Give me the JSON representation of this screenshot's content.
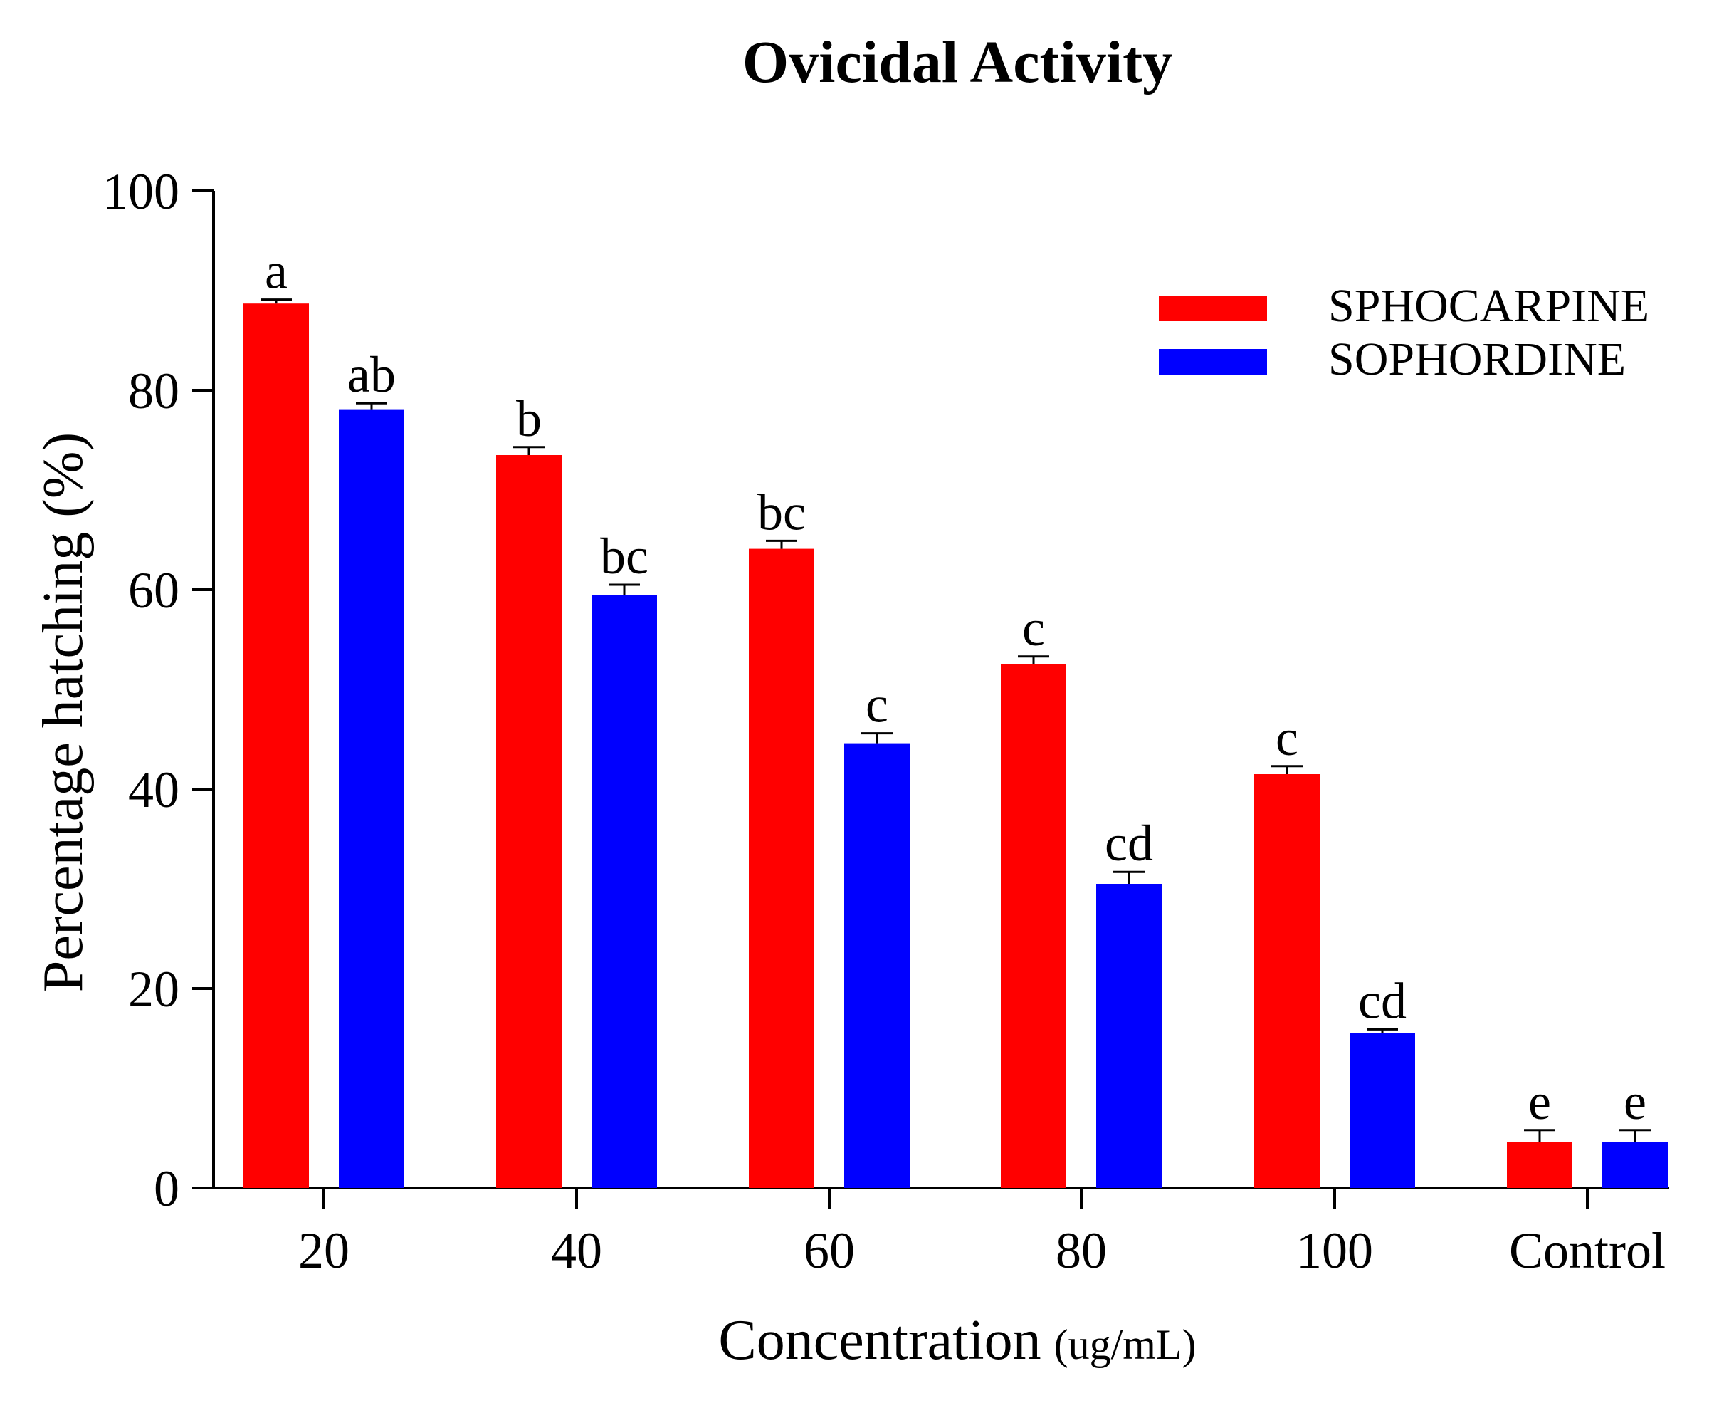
{
  "chart_data": {
    "type": "bar",
    "title": "Ovicidal Activity",
    "xlabel": "Concentration",
    "xlabel_unit": "(ug/mL)",
    "ylabel": "Percentage hatching (%)",
    "ylim": [
      0,
      100
    ],
    "yticks": [
      "0",
      "20",
      "40",
      "60",
      "80",
      "100"
    ],
    "categories": [
      "20",
      "40",
      "60",
      "80",
      "100",
      "Control"
    ],
    "series": [
      {
        "name": "SPHOCARPINE",
        "color": "#ff0000",
        "values": [
          88.7,
          73.5,
          64.1,
          52.5,
          41.5,
          4.6
        ],
        "errors": [
          0.4,
          0.8,
          0.8,
          0.8,
          0.8,
          1.2
        ],
        "labels": [
          "a",
          "b",
          "bc",
          "c",
          "c",
          "e"
        ]
      },
      {
        "name": "SOPHORDINE",
        "color": "#0000ff",
        "values": [
          78.1,
          59.5,
          44.6,
          30.5,
          15.5,
          4.6
        ],
        "errors": [
          0.6,
          1.0,
          1.0,
          1.2,
          0.4,
          1.2
        ],
        "labels": [
          "ab",
          "bc",
          "c",
          "cd",
          "cd",
          "e"
        ]
      }
    ],
    "legend_position": "top-right"
  }
}
